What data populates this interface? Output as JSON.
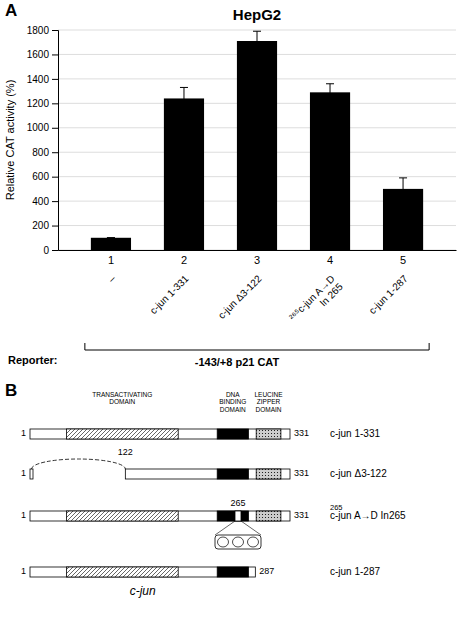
{
  "chart_data": {
    "type": "bar",
    "title": "HepG2",
    "ylabel": "Relative CAT activity (%)",
    "categories": [
      "1",
      "2",
      "3",
      "4",
      "5"
    ],
    "category_sublabels": [
      [
        "–"
      ],
      [
        "c-jun 1-331"
      ],
      [
        "c-jun Δ3-122"
      ],
      [
        "²⁶⁵c-jun A→D",
        "In 265"
      ],
      [
        "c-jun 1-287"
      ]
    ],
    "values": [
      100,
      1240,
      1710,
      1290,
      500
    ],
    "errors": [
      0,
      90,
      80,
      70,
      90
    ],
    "color": "#000000",
    "ylim": [
      0,
      1800
    ],
    "yticks": [
      0,
      200,
      400,
      600,
      800,
      1000,
      1200,
      1400,
      1600,
      1800
    ],
    "grid": true,
    "panel_labels": [
      "A",
      "B"
    ],
    "annotations": [
      "Reporter:",
      "-143/+8 p21 CAT"
    ],
    "diagram": {
      "domain_labels": [
        "TRANSACTIVATING\nDOMAIN",
        "DNA\nBINDING\nDOMAIN",
        "LEUCINE\nZIPPER\nDOMAIN"
      ],
      "constructs": [
        {
          "name": "c-jun 1-331",
          "start": 1,
          "end": 331
        },
        {
          "name": "c-jun Δ3-122",
          "start": 1,
          "deletion_end": 122,
          "end": 331
        },
        {
          "name": "c-jun A→D  In265",
          "superscript": "265",
          "start": 1,
          "insertion": 265,
          "end": 331
        },
        {
          "name": "c-jun 1-287",
          "start": 1,
          "end": 287
        }
      ],
      "caption": "c-jun"
    }
  }
}
